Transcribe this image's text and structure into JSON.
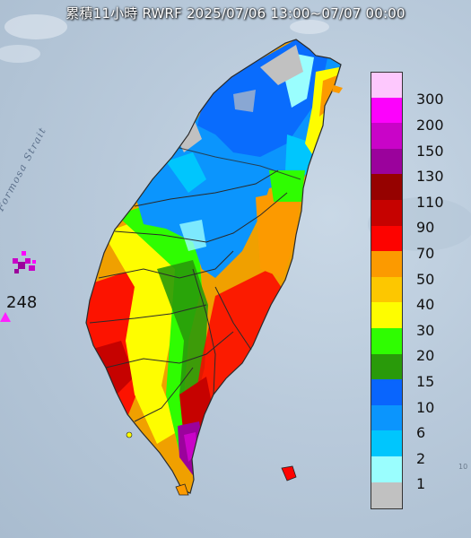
{
  "title": "累積11小時 RWRF 2025/07/06 13:00~07/07 00:00",
  "strait_label": "Formosa Strait",
  "max_marker": {
    "value": "248",
    "color": "#ff20ff"
  },
  "edge_label": "10",
  "legend": [
    {
      "label": "300",
      "color": "#fdc8fd"
    },
    {
      "label": "200",
      "color": "#fc02fc"
    },
    {
      "label": "150",
      "color": "#c904c8"
    },
    {
      "label": "130",
      "color": "#9b029c"
    },
    {
      "label": "110",
      "color": "#960200"
    },
    {
      "label": "90",
      "color": "#c60200"
    },
    {
      "label": "70",
      "color": "#fd0300"
    },
    {
      "label": "50",
      "color": "#fc9a00"
    },
    {
      "label": "40",
      "color": "#fdc700"
    },
    {
      "label": "30",
      "color": "#fefd00"
    },
    {
      "label": "20",
      "color": "#2ffd01"
    },
    {
      "label": "15",
      "color": "#299a0a"
    },
    {
      "label": "10",
      "color": "#0965fd"
    },
    {
      "label": "6",
      "color": "#0b95fd"
    },
    {
      "label": "2",
      "color": "#00c6fd"
    },
    {
      "label": "1",
      "color": "#9afefe"
    },
    {
      "label": "",
      "color": "#c1c1c1"
    }
  ]
}
